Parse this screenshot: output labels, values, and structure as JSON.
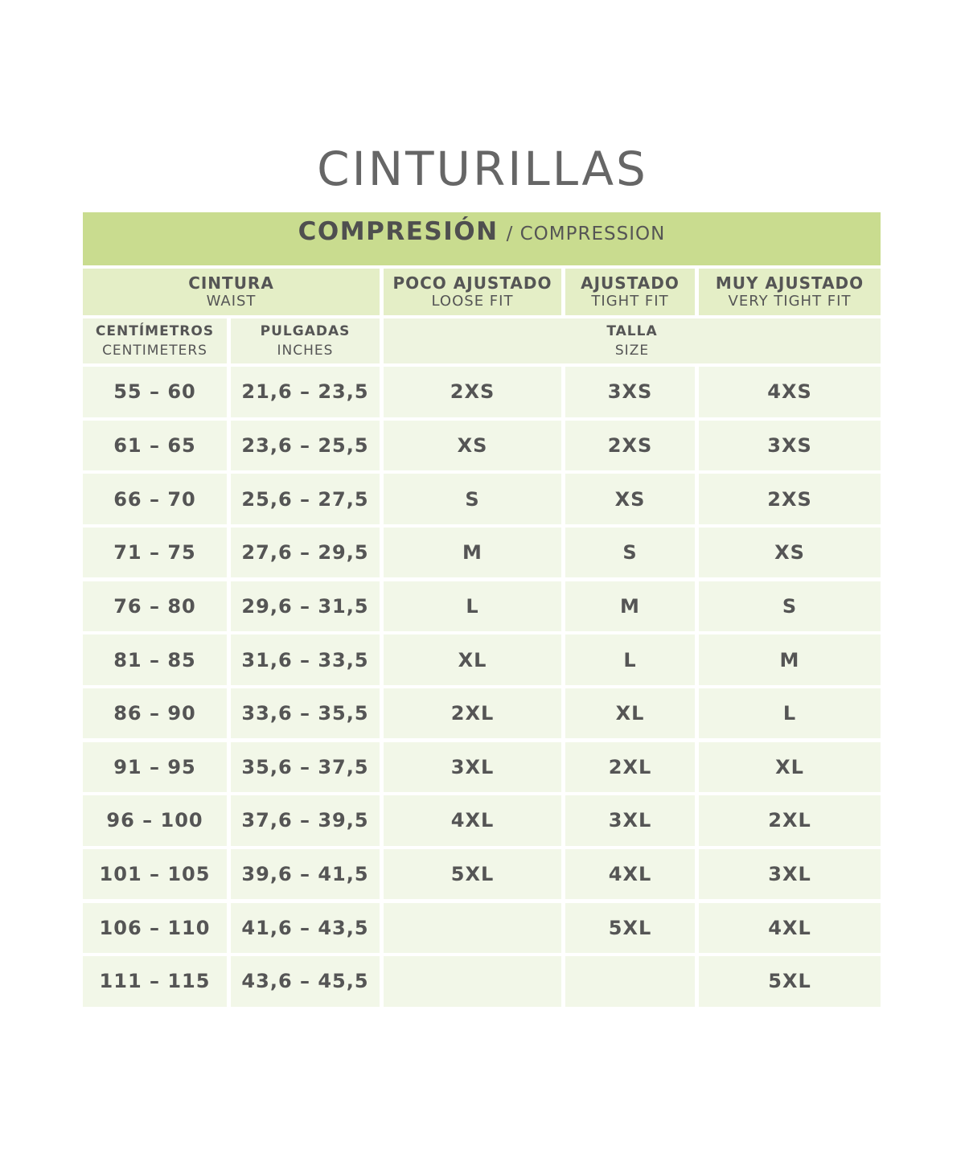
{
  "title": "CINTURILLAS",
  "table": {
    "banner": {
      "es": "COMPRESIÓN",
      "en": "/ COMPRESSION"
    },
    "groups": [
      {
        "es": "CINTURA",
        "en": "WAIST"
      },
      {
        "es": "POCO AJUSTADO",
        "en": "LOOSE FIT"
      },
      {
        "es": "AJUSTADO",
        "en": "TIGHT FIT"
      },
      {
        "es": "MUY AJUSTADO",
        "en": "VERY TIGHT FIT"
      }
    ],
    "subheaders": [
      {
        "es": "CENTÍMETROS",
        "en": "CENTIMETERS"
      },
      {
        "es": "PULGADAS",
        "en": "INCHES"
      },
      {
        "es": "TALLA",
        "en": "SIZE"
      }
    ],
    "rows": [
      [
        "55 – 60",
        "21,6 – 23,5",
        "2XS",
        "3XS",
        "4XS"
      ],
      [
        "61 – 65",
        "23,6 – 25,5",
        "XS",
        "2XS",
        "3XS"
      ],
      [
        "66 – 70",
        "25,6 – 27,5",
        "S",
        "XS",
        "2XS"
      ],
      [
        "71 – 75",
        "27,6 – 29,5",
        "M",
        "S",
        "XS"
      ],
      [
        "76 – 80",
        "29,6 – 31,5",
        "L",
        "M",
        "S"
      ],
      [
        "81 – 85",
        "31,6 – 33,5",
        "XL",
        "L",
        "M"
      ],
      [
        "86 – 90",
        "33,6 – 35,5",
        "2XL",
        "XL",
        "L"
      ],
      [
        "91 – 95",
        "35,6 – 37,5",
        "3XL",
        "2XL",
        "XL"
      ],
      [
        "96 – 100",
        "37,6 – 39,5",
        "4XL",
        "3XL",
        "2XL"
      ],
      [
        "101 – 105",
        "39,6 – 41,5",
        "5XL",
        "4XL",
        "3XL"
      ],
      [
        "106 – 110",
        "41,6 – 43,5",
        null,
        "5XL",
        "4XL"
      ],
      [
        "111 – 115",
        "43,6 – 45,5",
        null,
        null,
        "5XL"
      ]
    ]
  }
}
